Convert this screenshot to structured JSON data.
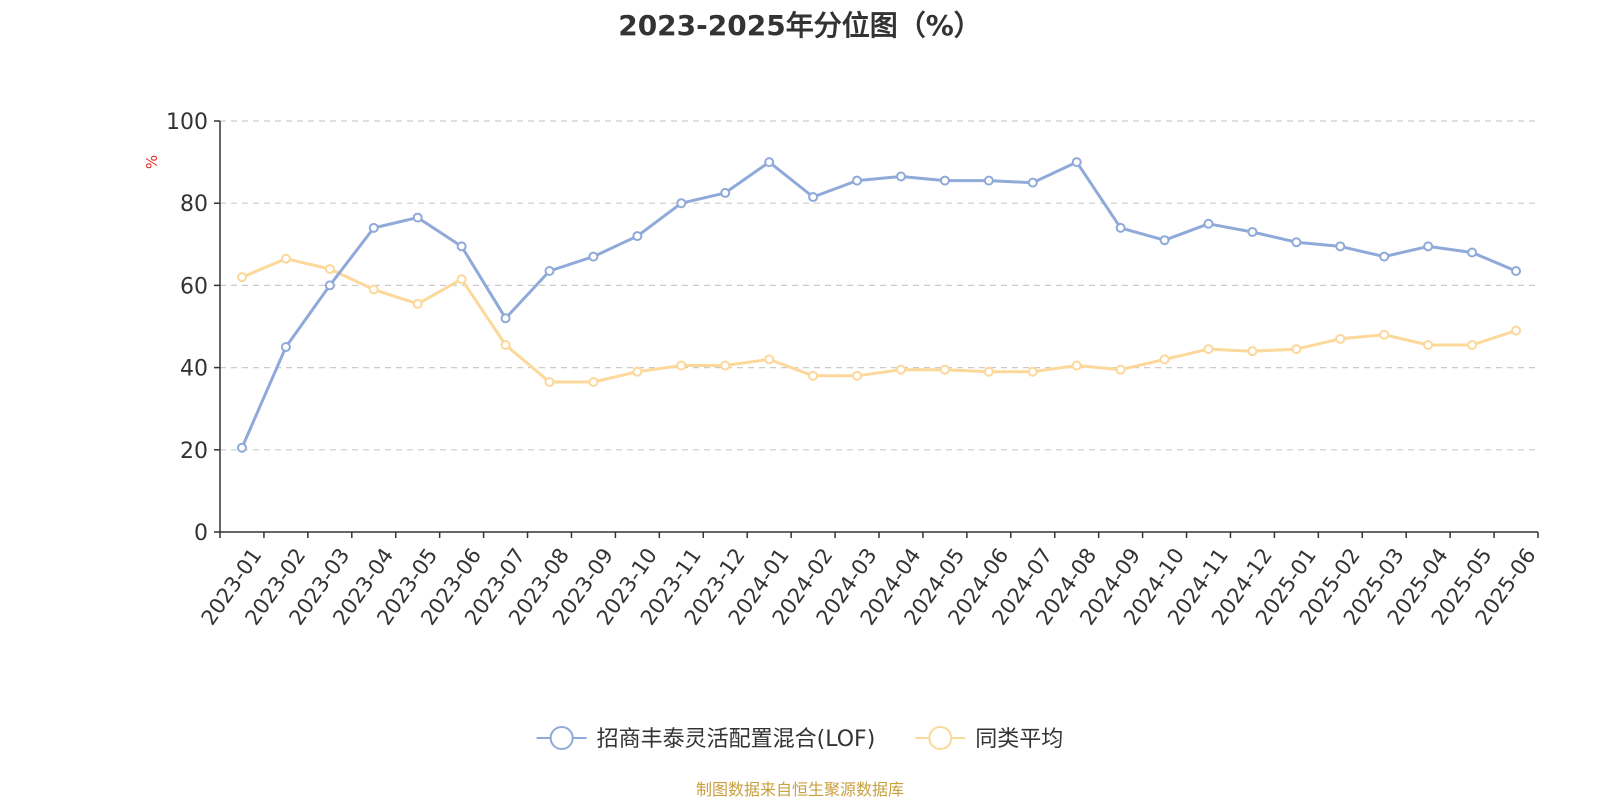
{
  "chart_data": {
    "type": "line",
    "title": "2023-2025年分位图（%）",
    "ylabel": "%",
    "xlabel": "",
    "ylim": [
      0,
      100
    ],
    "yticks": [
      0,
      20,
      40,
      60,
      80,
      100
    ],
    "grid": true,
    "legend_position": "bottom-center",
    "categories": [
      "2023-01",
      "2023-02",
      "2023-03",
      "2023-04",
      "2023-05",
      "2023-06",
      "2023-07",
      "2023-08",
      "2023-09",
      "2023-10",
      "2023-11",
      "2023-12",
      "2024-01",
      "2024-02",
      "2024-03",
      "2024-04",
      "2024-05",
      "2024-06",
      "2024-07",
      "2024-08",
      "2024-09",
      "2024-10",
      "2024-11",
      "2024-12",
      "2025-01",
      "2025-02",
      "2025-03",
      "2025-04",
      "2025-05",
      "2025-06"
    ],
    "series": [
      {
        "name": "招商丰泰灵活配置混合(LOF)",
        "color": "#8faad9",
        "values": [
          20.5,
          45,
          60,
          74,
          76.5,
          69.5,
          52,
          63.5,
          67,
          72,
          80,
          82.5,
          90,
          81.5,
          85.5,
          86.5,
          85.5,
          85.5,
          85,
          90,
          74,
          71,
          75,
          73,
          70.5,
          69.5,
          67,
          69.5,
          68,
          63.5
        ]
      },
      {
        "name": "同类平均",
        "color": "#fcd89a",
        "values": [
          62,
          66.5,
          64,
          59,
          55.5,
          61.5,
          45.5,
          36.5,
          36.5,
          39,
          40.5,
          40.5,
          42,
          38,
          38,
          39.5,
          39.5,
          39,
          39,
          40.5,
          39.5,
          42,
          44.5,
          44,
          44.5,
          47,
          48,
          45.5,
          45.5,
          49
        ]
      }
    ]
  },
  "footer": {
    "source": "制图数据来自恒生聚源数据库"
  }
}
